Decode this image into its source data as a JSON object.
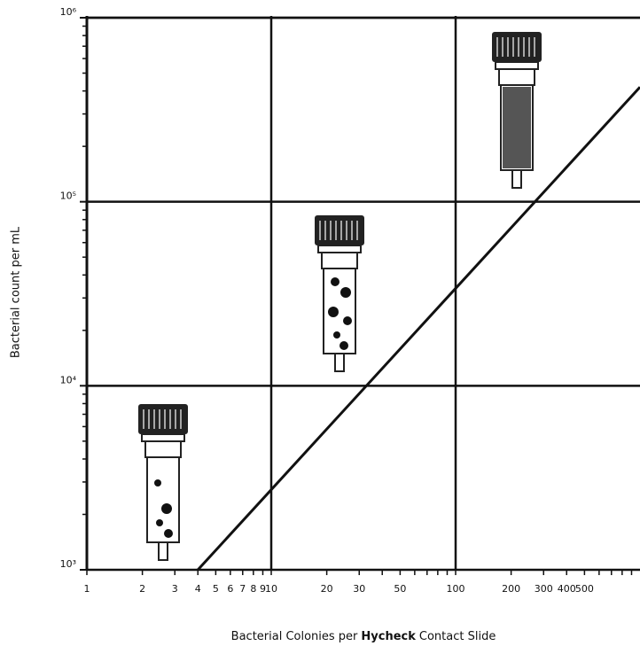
{
  "chart_data": {
    "type": "line",
    "xlabel": {
      "before": "Bacterial Colonies per",
      "bold": "Hycheck",
      "after": "Contact Slide"
    },
    "ylabel": "Bacterial count per mL",
    "xscale": "log",
    "yscale": "log",
    "grid": true,
    "color": "#111111",
    "xlim": [
      1,
      1000
    ],
    "ylim": [
      1000,
      1000000
    ],
    "xticks": [
      1,
      2,
      3,
      4,
      5,
      6,
      7,
      8,
      9,
      10,
      20,
      30,
      50,
      100,
      200,
      300,
      400,
      500
    ],
    "xminor_ticks": [
      40,
      60,
      70,
      80,
      90,
      600,
      700,
      800,
      900
    ],
    "xgrid": [
      10,
      100
    ],
    "yticks": [
      {
        "value": 1000,
        "label": "10³"
      },
      {
        "value": 10000,
        "label": "10⁴"
      },
      {
        "value": 100000,
        "label": "10⁵"
      },
      {
        "value": 1000000,
        "label": "10⁶"
      }
    ],
    "yminor_ticks": [
      2000,
      3000,
      4000,
      5000,
      6000,
      7000,
      8000,
      9000,
      20000,
      30000,
      40000,
      50000,
      60000,
      70000,
      80000,
      90000,
      200000,
      300000,
      400000,
      500000,
      600000,
      700000,
      800000,
      900000
    ],
    "x": [
      4,
      1000
    ],
    "series": [
      {
        "values": [
          1000,
          420000
        ]
      }
    ]
  }
}
